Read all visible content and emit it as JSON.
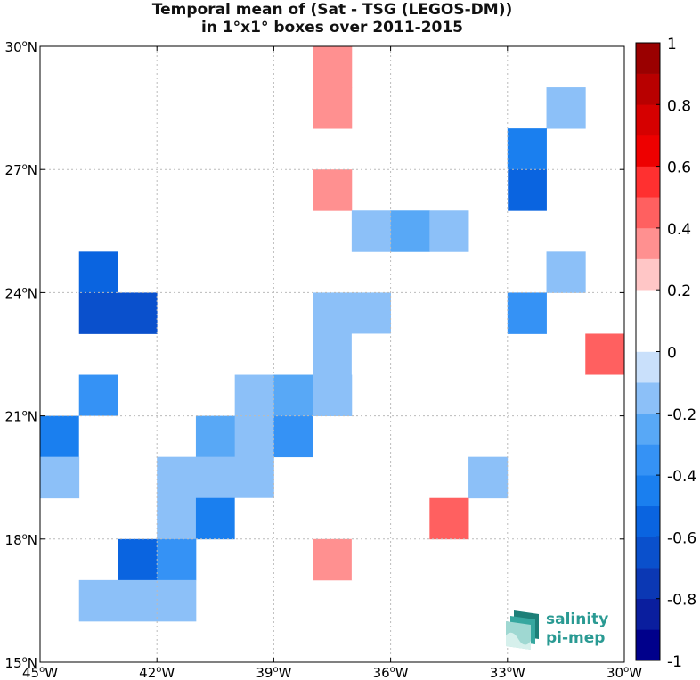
{
  "title_line1": "Temporal mean of (Sat - TSG (LEGOS-DM))",
  "title_line2": "in 1°x1° boxes over 2011-2015",
  "logo": {
    "line1": "salinity",
    "line2": "pi-mep",
    "color": "#2a9a93"
  },
  "chart_data": {
    "type": "heatmap",
    "title": "Temporal mean of (Sat - TSG (LEGOS-DM)) in 1°x1° boxes over 2011-2015",
    "xlim": [
      -45,
      -30
    ],
    "ylim": [
      15,
      30
    ],
    "x_ticks": [
      {
        "value": -45,
        "label": "45°W"
      },
      {
        "value": -42,
        "label": "42°W"
      },
      {
        "value": -39,
        "label": "39°W"
      },
      {
        "value": -36,
        "label": "36°W"
      },
      {
        "value": -33,
        "label": "33°W"
      },
      {
        "value": -30,
        "label": "30°W"
      }
    ],
    "y_ticks": [
      {
        "value": 15,
        "label": "15°N"
      },
      {
        "value": 18,
        "label": "18°N"
      },
      {
        "value": 21,
        "label": "21°N"
      },
      {
        "value": 24,
        "label": "24°N"
      },
      {
        "value": 27,
        "label": "27°N"
      },
      {
        "value": 30,
        "label": "30°N"
      }
    ],
    "grid": true,
    "colorbar": {
      "min": -1,
      "max": 1,
      "step": 0.1,
      "tick_values": [
        1,
        0.8,
        0.6,
        0.4,
        0.2,
        0,
        -0.2,
        -0.4,
        -0.6,
        -0.8,
        -1
      ],
      "tick_labels": [
        "1",
        "0.8",
        "0.6",
        "0.4",
        "0.2",
        "0",
        "-0.2",
        "-0.4",
        "-0.6",
        "-0.8",
        "-1"
      ],
      "colors_low_to_high": [
        "#00008b",
        "#0a1e9e",
        "#0b38b4",
        "#0a50cc",
        "#0a64e0",
        "#1a7fef",
        "#3592f5",
        "#58a8f6",
        "#8cc0f8",
        "#c9e0fb",
        "#ffffff",
        "#ffffff",
        "#ffc6c6",
        "#ff9090",
        "#ff6060",
        "#ff3030",
        "#ee0000",
        "#d60000",
        "#b80000",
        "#9a0000",
        "#7a0000"
      ]
    },
    "cells": [
      {
        "lon": -38,
        "lat": 29,
        "value": 0.3
      },
      {
        "lon": -38,
        "lat": 28,
        "value": 0.3
      },
      {
        "lon": -33,
        "lat": 29,
        "value": 0.15
      },
      {
        "lon": -36,
        "lat": 28,
        "value": 0.15
      },
      {
        "lon": -32,
        "lat": 28,
        "value": -0.15
      },
      {
        "lon": -33,
        "lat": 27,
        "value": -0.45
      },
      {
        "lon": -33,
        "lat": 26,
        "value": -0.55
      },
      {
        "lon": -34,
        "lat": 26,
        "value": 0.15
      },
      {
        "lon": -38,
        "lat": 26,
        "value": 0.3
      },
      {
        "lon": -41,
        "lat": 26,
        "value": 0.15
      },
      {
        "lon": -40,
        "lat": 26,
        "value": 0.15
      },
      {
        "lon": -41,
        "lat": 25,
        "value": 0.15
      },
      {
        "lon": -37,
        "lat": 25,
        "value": -0.15
      },
      {
        "lon": -36,
        "lat": 25,
        "value": -0.25
      },
      {
        "lon": -35,
        "lat": 25,
        "value": -0.15
      },
      {
        "lon": -44,
        "lat": 24,
        "value": -0.55
      },
      {
        "lon": -43,
        "lat": 24,
        "value": 0.15
      },
      {
        "lon": -32,
        "lat": 24,
        "value": -0.15
      },
      {
        "lon": -44,
        "lat": 23,
        "value": -0.65
      },
      {
        "lon": -43,
        "lat": 23,
        "value": -0.65
      },
      {
        "lon": -38,
        "lat": 23,
        "value": -0.15
      },
      {
        "lon": -37,
        "lat": 23,
        "value": -0.15
      },
      {
        "lon": -33,
        "lat": 23,
        "value": -0.35
      },
      {
        "lon": -38,
        "lat": 22,
        "value": -0.15
      },
      {
        "lon": -37,
        "lat": 22,
        "value": 0.15
      },
      {
        "lon": -31,
        "lat": 22,
        "value": 0.45
      },
      {
        "lon": -44,
        "lat": 21,
        "value": -0.35
      },
      {
        "lon": -40,
        "lat": 21,
        "value": -0.15
      },
      {
        "lon": -39,
        "lat": 21,
        "value": -0.25
      },
      {
        "lon": -38,
        "lat": 21,
        "value": -0.15
      },
      {
        "lon": -31,
        "lat": 21,
        "value": 0.15
      },
      {
        "lon": -45,
        "lat": 20,
        "value": -0.45
      },
      {
        "lon": -44,
        "lat": 20,
        "value": 0.15
      },
      {
        "lon": -41,
        "lat": 20,
        "value": -0.25
      },
      {
        "lon": -40,
        "lat": 20,
        "value": -0.15
      },
      {
        "lon": -39,
        "lat": 20,
        "value": -0.35
      },
      {
        "lon": -34,
        "lat": 20,
        "value": 0.15
      },
      {
        "lon": -33,
        "lat": 20,
        "value": 0.15
      },
      {
        "lon": -32,
        "lat": 20,
        "value": 0.15
      },
      {
        "lon": -45,
        "lat": 19,
        "value": -0.15
      },
      {
        "lon": -42,
        "lat": 19,
        "value": -0.15
      },
      {
        "lon": -41,
        "lat": 19,
        "value": -0.15
      },
      {
        "lon": -40,
        "lat": 19,
        "value": -0.15
      },
      {
        "lon": -34,
        "lat": 19,
        "value": -0.15
      },
      {
        "lon": -42,
        "lat": 18,
        "value": -0.15
      },
      {
        "lon": -41,
        "lat": 18,
        "value": -0.45
      },
      {
        "lon": -40,
        "lat": 18,
        "value": 0.15
      },
      {
        "lon": -37,
        "lat": 18,
        "value": 0.15
      },
      {
        "lon": -36,
        "lat": 18,
        "value": 0.15
      },
      {
        "lon": -35,
        "lat": 18,
        "value": 0.45
      },
      {
        "lon": -43,
        "lat": 17,
        "value": -0.55
      },
      {
        "lon": -42,
        "lat": 17,
        "value": -0.35
      },
      {
        "lon": -40,
        "lat": 17,
        "value": 0.15
      },
      {
        "lon": -38,
        "lat": 17,
        "value": 0.3
      },
      {
        "lon": -37,
        "lat": 17,
        "value": 0.15
      },
      {
        "lon": -44,
        "lat": 16,
        "value": -0.15
      },
      {
        "lon": -43,
        "lat": 16,
        "value": -0.15
      },
      {
        "lon": -42,
        "lat": 16,
        "value": -0.15
      }
    ]
  }
}
